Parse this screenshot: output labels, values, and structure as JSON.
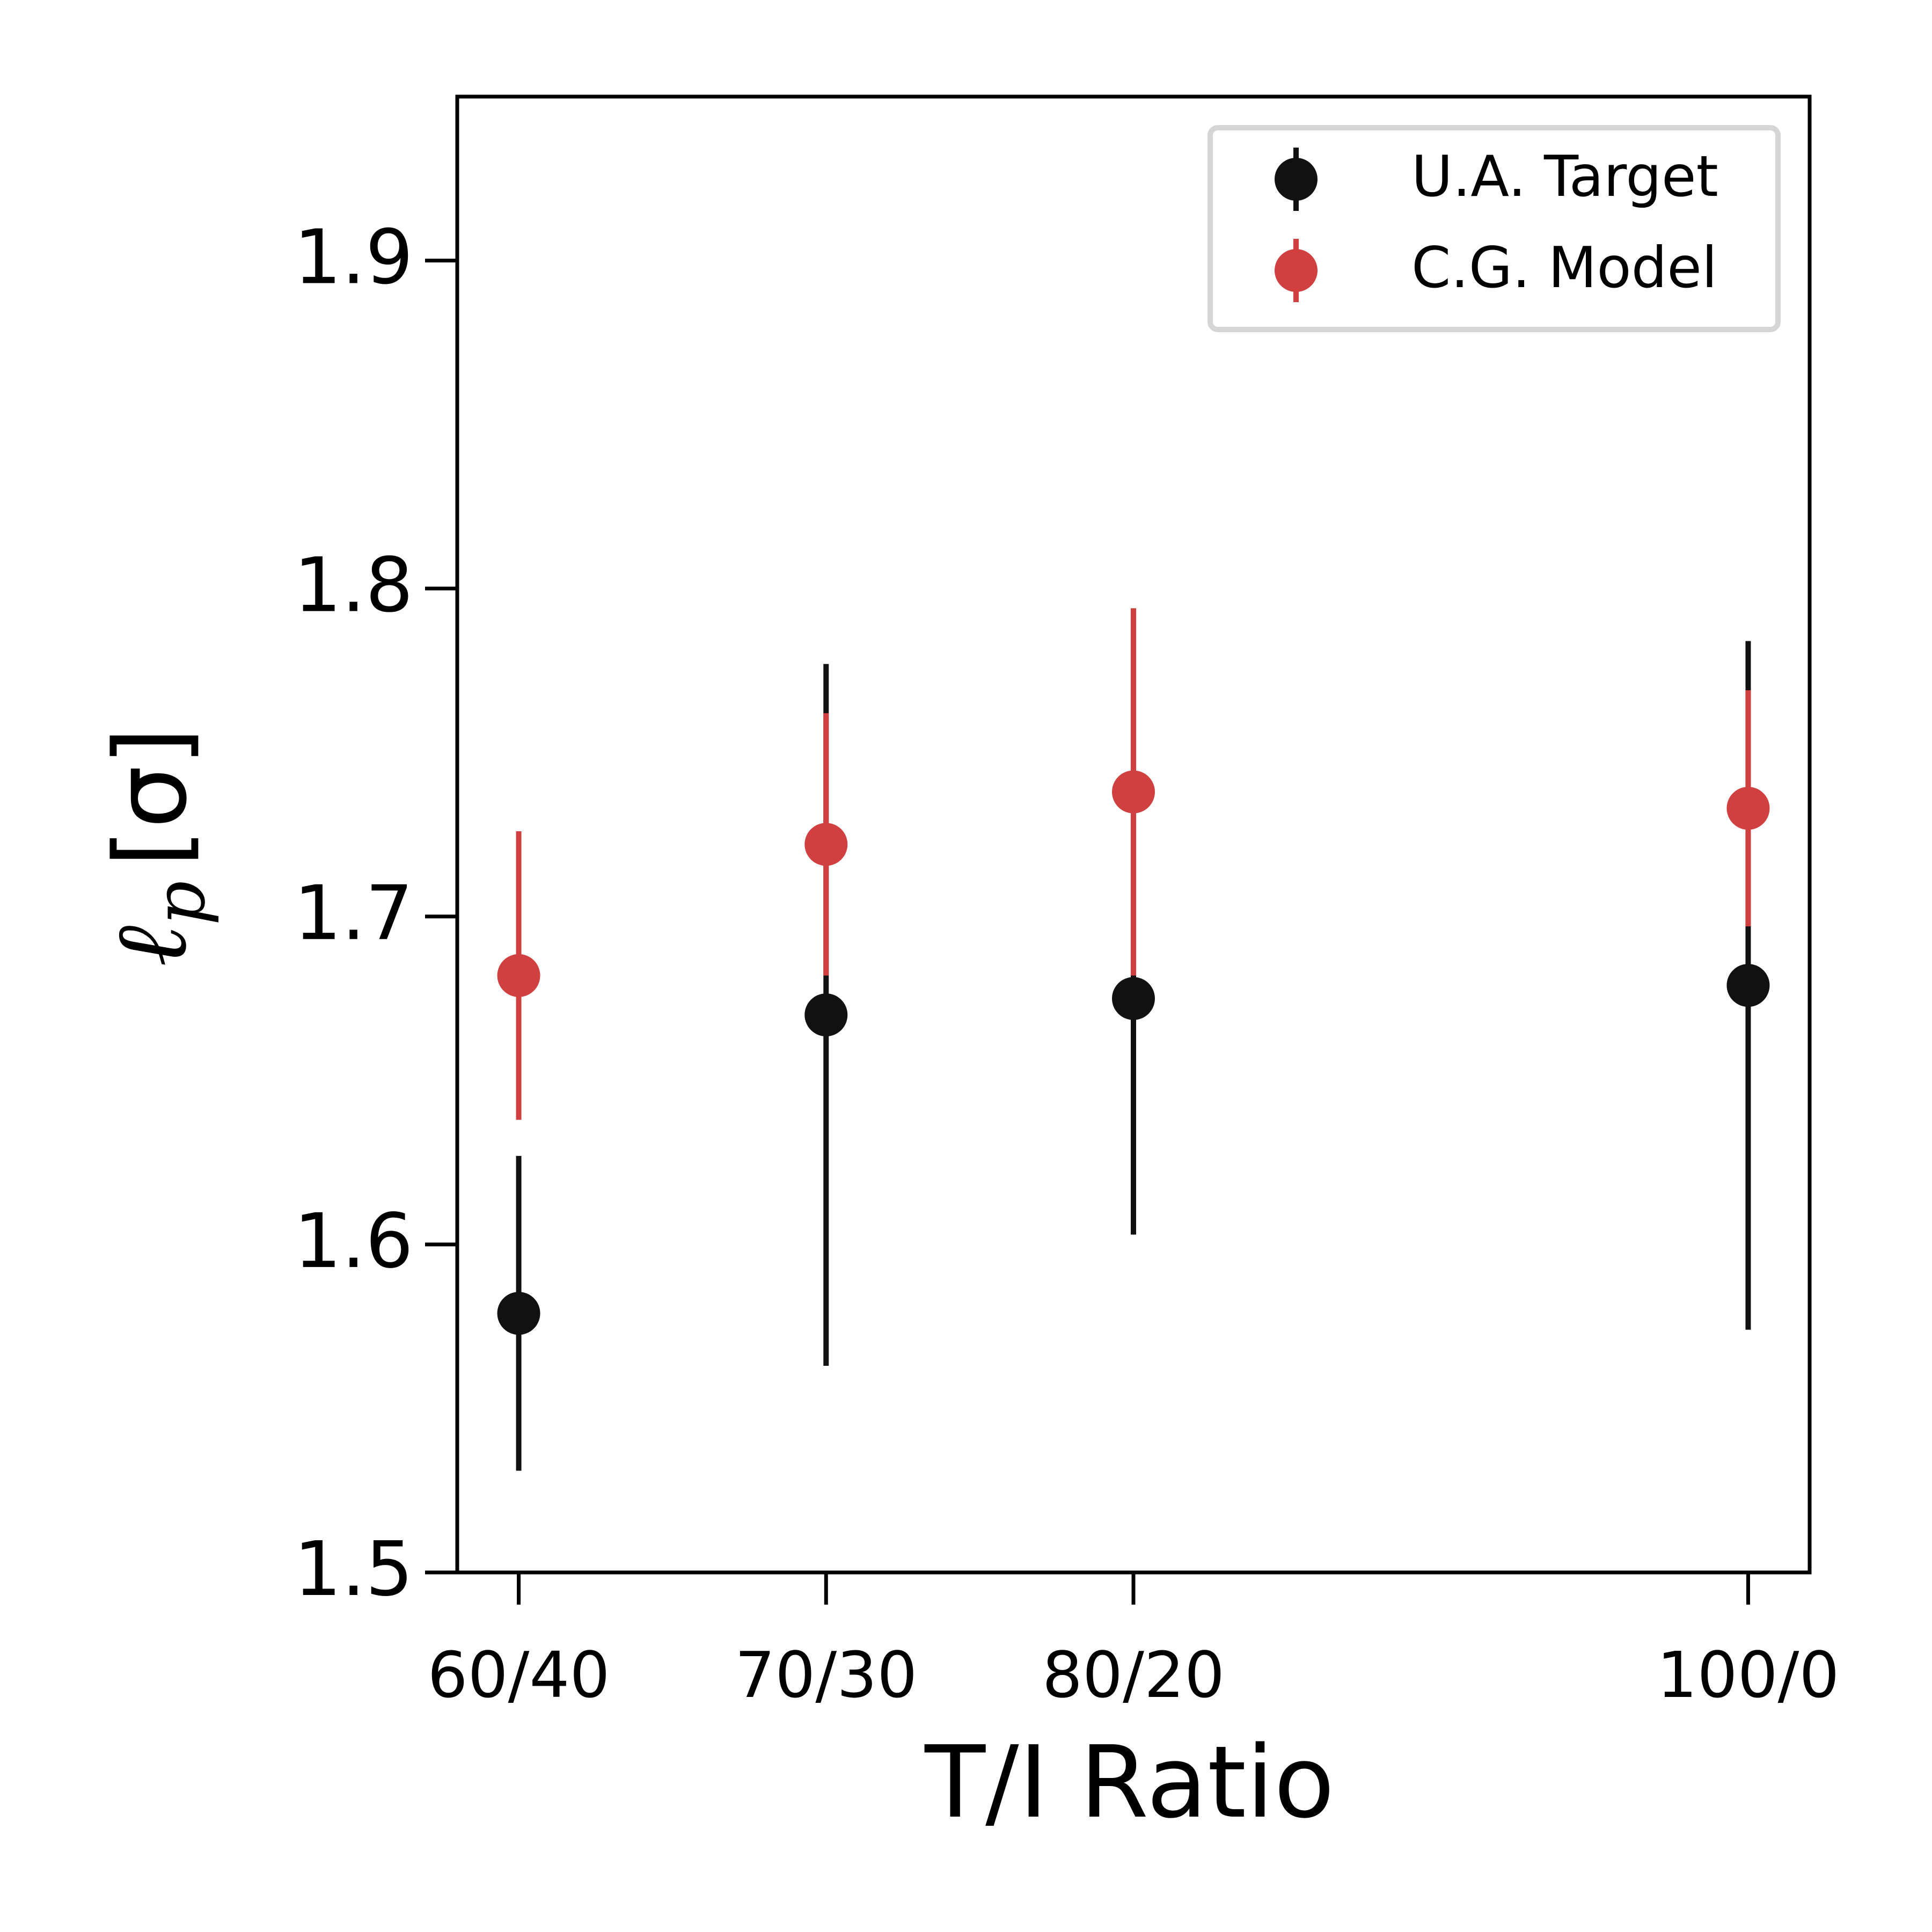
{
  "chart_data": {
    "type": "scatter",
    "title": "",
    "xlabel": "T/I Ratio",
    "ylabel": {
      "symbol": "ℓ",
      "subscript": "p",
      "unit": "[σ]"
    },
    "categories": [
      "60/40",
      "70/30",
      "80/20",
      "100/0"
    ],
    "x": [
      60,
      70,
      80,
      100
    ],
    "xlim": [
      58,
      102
    ],
    "ylim": [
      1.5,
      1.95
    ],
    "yticks": [
      1.5,
      1.6,
      1.7,
      1.8,
      1.9
    ],
    "ytick_labels": [
      "1.5",
      "1.6",
      "1.7",
      "1.8",
      "1.9"
    ],
    "grid": false,
    "legend_position": "top-right",
    "series": [
      {
        "name": "U.A. Target",
        "color": "#111111",
        "values": [
          1.579,
          1.67,
          1.675,
          1.679
        ],
        "error": [
          0.048,
          0.107,
          0.072,
          0.105
        ]
      },
      {
        "name": "C.G. Model",
        "color": "#d04040",
        "values": [
          1.682,
          1.722,
          1.738,
          1.733
        ],
        "error": [
          0.044,
          0.04,
          0.056,
          0.036
        ]
      }
    ]
  }
}
